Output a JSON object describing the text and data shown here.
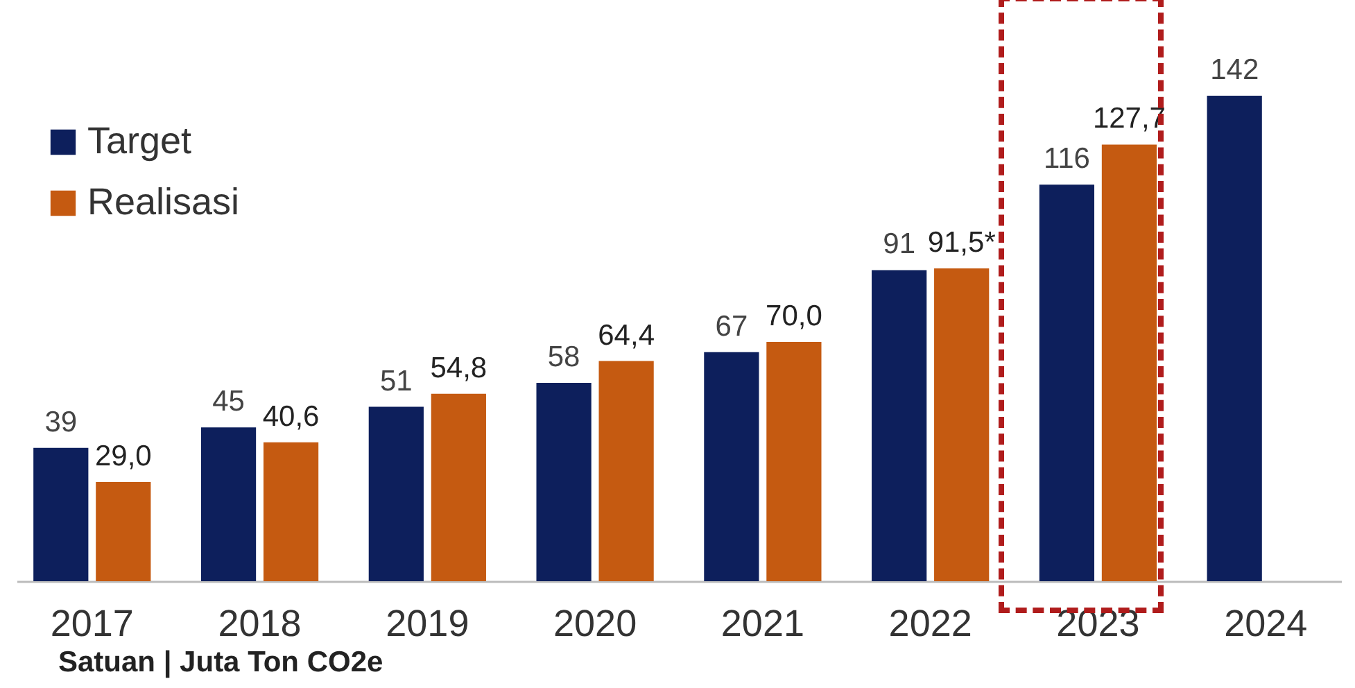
{
  "chart_data": {
    "type": "bar",
    "categories": [
      "2017",
      "2018",
      "2019",
      "2020",
      "2021",
      "2022",
      "2023",
      "2024"
    ],
    "series": [
      {
        "name": "Target",
        "color": "#0d1f5c",
        "values": [
          39,
          45,
          51,
          58,
          67,
          91,
          116,
          142
        ],
        "value_labels": [
          "39",
          "45",
          "51",
          "58",
          "67",
          "91",
          "116",
          "142"
        ]
      },
      {
        "name": "Realisasi",
        "color": "#c55a11",
        "values": [
          29.0,
          40.6,
          54.8,
          64.4,
          70.0,
          91.5,
          127.7,
          null
        ],
        "value_labels": [
          "29,0",
          "40,6",
          "54,8",
          "64,4",
          "70,0",
          "91,5*",
          "127,7",
          null
        ]
      }
    ],
    "annotations": [
      "Satuan | Juta Ton CO2e"
    ],
    "legend": "top left",
    "grid": false
  }
}
